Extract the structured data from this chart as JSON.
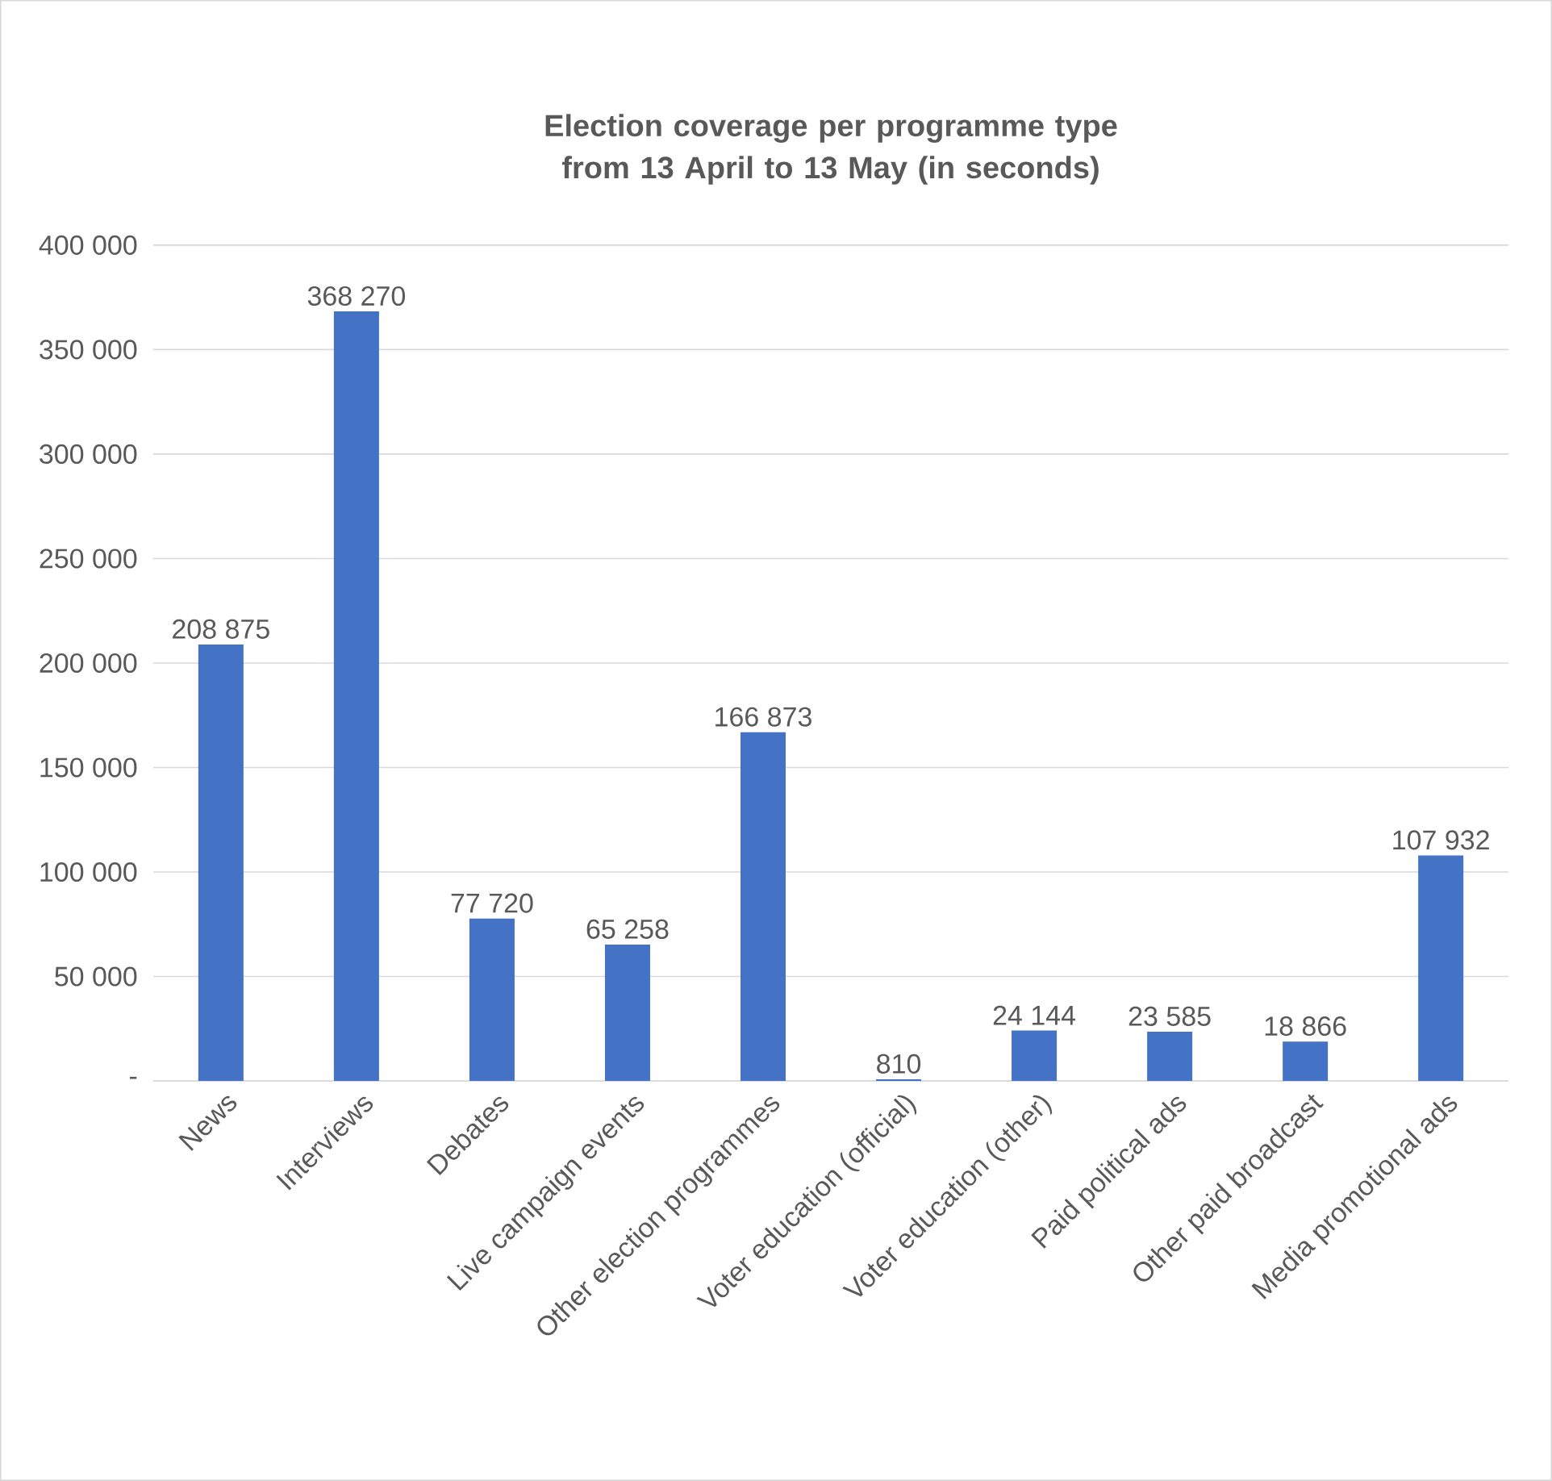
{
  "chart_data": {
    "type": "bar",
    "title": "Election coverage per programme type from 13 April to 13 May (in seconds)",
    "categories": [
      "News",
      "Interviews",
      "Debates",
      "Live campaign events",
      "Other election programmes",
      "Voter education (official)",
      "Voter education (other)",
      "Paid political ads",
      "Other paid broadcast",
      "Media promotional ads"
    ],
    "values": [
      208875,
      368270,
      77720,
      65258,
      166873,
      810,
      24144,
      23585,
      18866,
      107932
    ],
    "value_labels": [
      "208 875",
      "368 270",
      "77 720",
      "65 258",
      "166 873",
      "810",
      "24 144",
      "23 585",
      "18 866",
      "107 932"
    ],
    "color": "#4472c4",
    "ylim": [
      0,
      400000
    ],
    "yticks": [
      {
        "value": 0,
        "label": "-"
      },
      {
        "value": 50000,
        "label": "50 000"
      },
      {
        "value": 100000,
        "label": "100 000"
      },
      {
        "value": 150000,
        "label": "150 000"
      },
      {
        "value": 200000,
        "label": "200 000"
      },
      {
        "value": 250000,
        "label": "250 000"
      },
      {
        "value": 300000,
        "label": "300 000"
      },
      {
        "value": 350000,
        "label": "350 000"
      },
      {
        "value": 400000,
        "label": "400 000"
      }
    ],
    "grid": "y"
  }
}
